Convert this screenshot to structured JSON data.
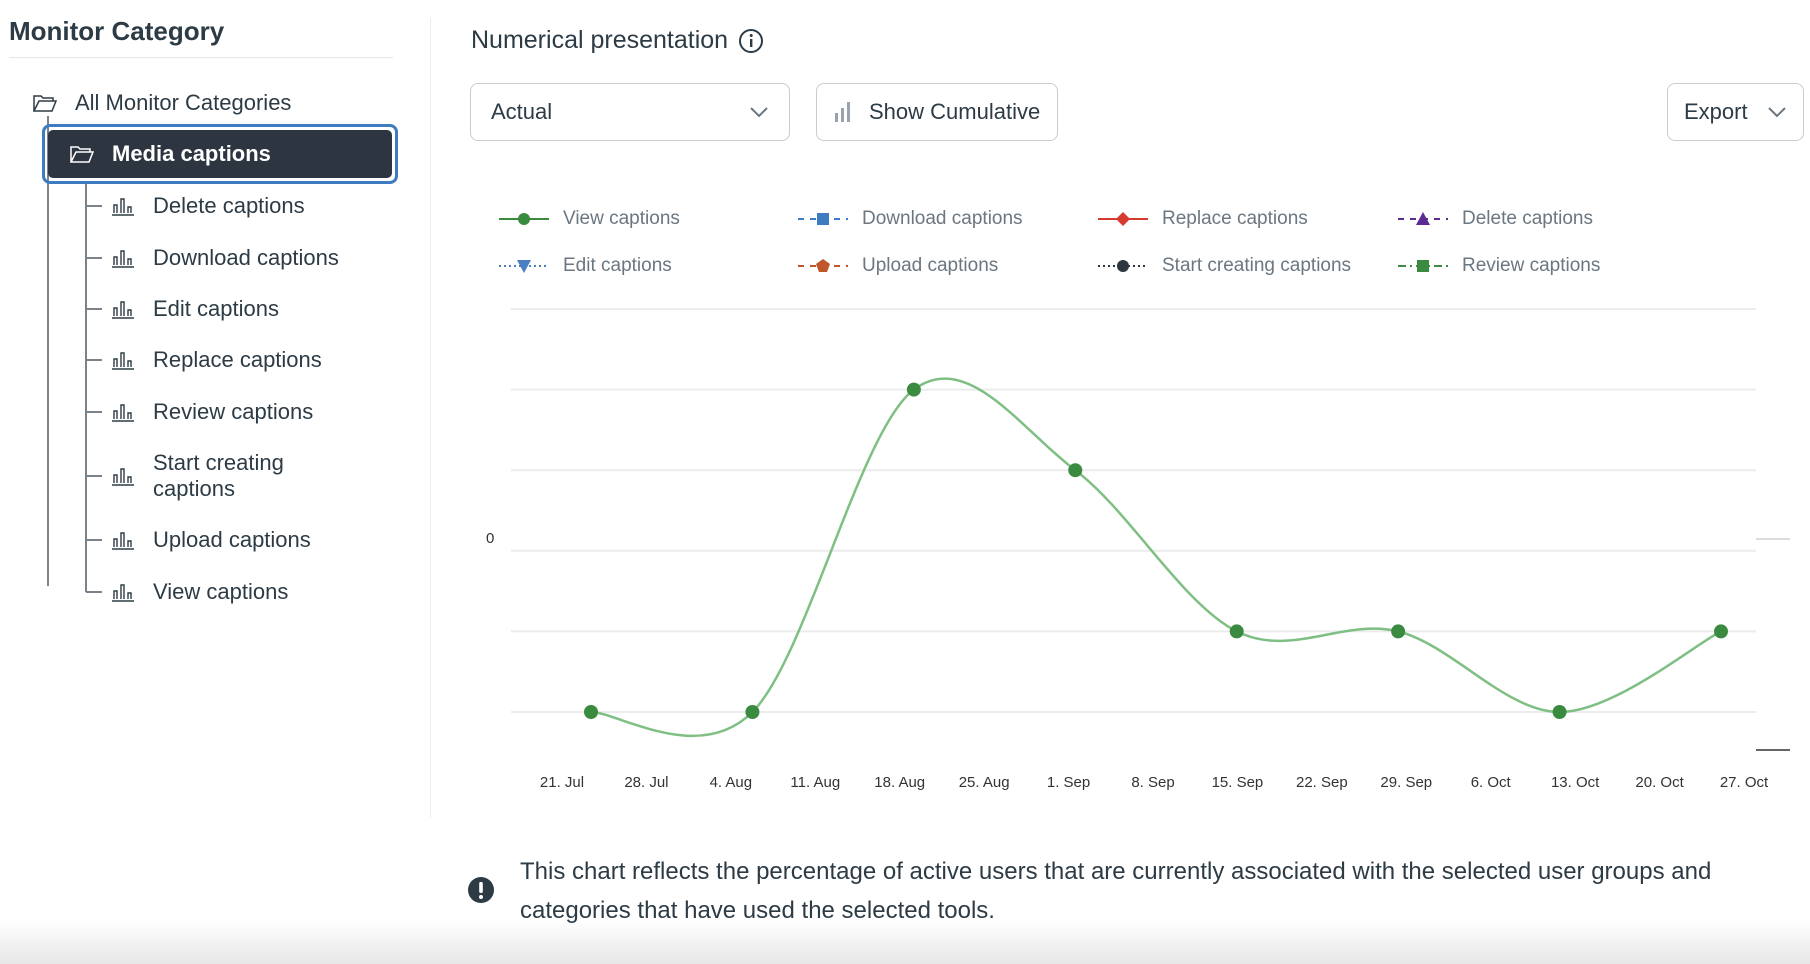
{
  "sidebar": {
    "title": "Monitor Category",
    "root": "All Monitor Categories",
    "selected": "Media captions",
    "items": [
      "Delete captions",
      "Download captions",
      "Edit captions",
      "Replace captions",
      "Review captions",
      "Start creating captions",
      "Upload captions",
      "View captions"
    ]
  },
  "header": {
    "title": "Numerical presentation",
    "dropdown_value": "Actual",
    "cumulative_label": "Show Cumulative",
    "export_label": "Export"
  },
  "legend": [
    {
      "label": "View captions",
      "color": "#3a8a3f",
      "marker": "circle",
      "dash": "solid"
    },
    {
      "label": "Download captions",
      "color": "#3f7bc1",
      "marker": "square",
      "dash": "dash"
    },
    {
      "label": "Replace captions",
      "color": "#d63b2f",
      "marker": "diamond",
      "dash": "solid"
    },
    {
      "label": "Delete captions",
      "color": "#5b2a93",
      "marker": "triangle",
      "dash": "dash"
    },
    {
      "label": "Edit captions",
      "color": "#4a7fc4",
      "marker": "triangle-down",
      "dash": "dot"
    },
    {
      "label": "Upload captions",
      "color": "#c0562a",
      "marker": "pentagon",
      "dash": "dash"
    },
    {
      "label": "Start creating captions",
      "color": "#2d3540",
      "marker": "circle",
      "dash": "dot"
    },
    {
      "label": "Review captions",
      "color": "#3a8a3f",
      "marker": "square",
      "dash": "dashdot"
    }
  ],
  "chart_data": {
    "type": "line",
    "title": "",
    "y_tick_labels": [
      "0"
    ],
    "x_tick_labels": [
      "21. Jul",
      "28. Jul",
      "4. Aug",
      "11. Aug",
      "18. Aug",
      "25. Aug",
      "1. Sep",
      "8. Sep",
      "15. Sep",
      "22. Sep",
      "29. Sep",
      "6. Oct",
      "13. Oct",
      "20. Oct",
      "27. Oct"
    ],
    "ylim": [
      0,
      5
    ],
    "series": [
      {
        "name": "View captions",
        "color": "#3a8a3f",
        "x": [
          "21. Jul",
          "4. Aug",
          "18. Aug",
          "1. Sep",
          "15. Sep",
          "29. Sep",
          "13. Oct",
          "27. Oct"
        ],
        "values": [
          0,
          0,
          4,
          3,
          1,
          1,
          0,
          1
        ]
      }
    ]
  },
  "notice": "This chart reflects the percentage of active users that are currently associated with the selected user groups and categories that have used the selected tools."
}
